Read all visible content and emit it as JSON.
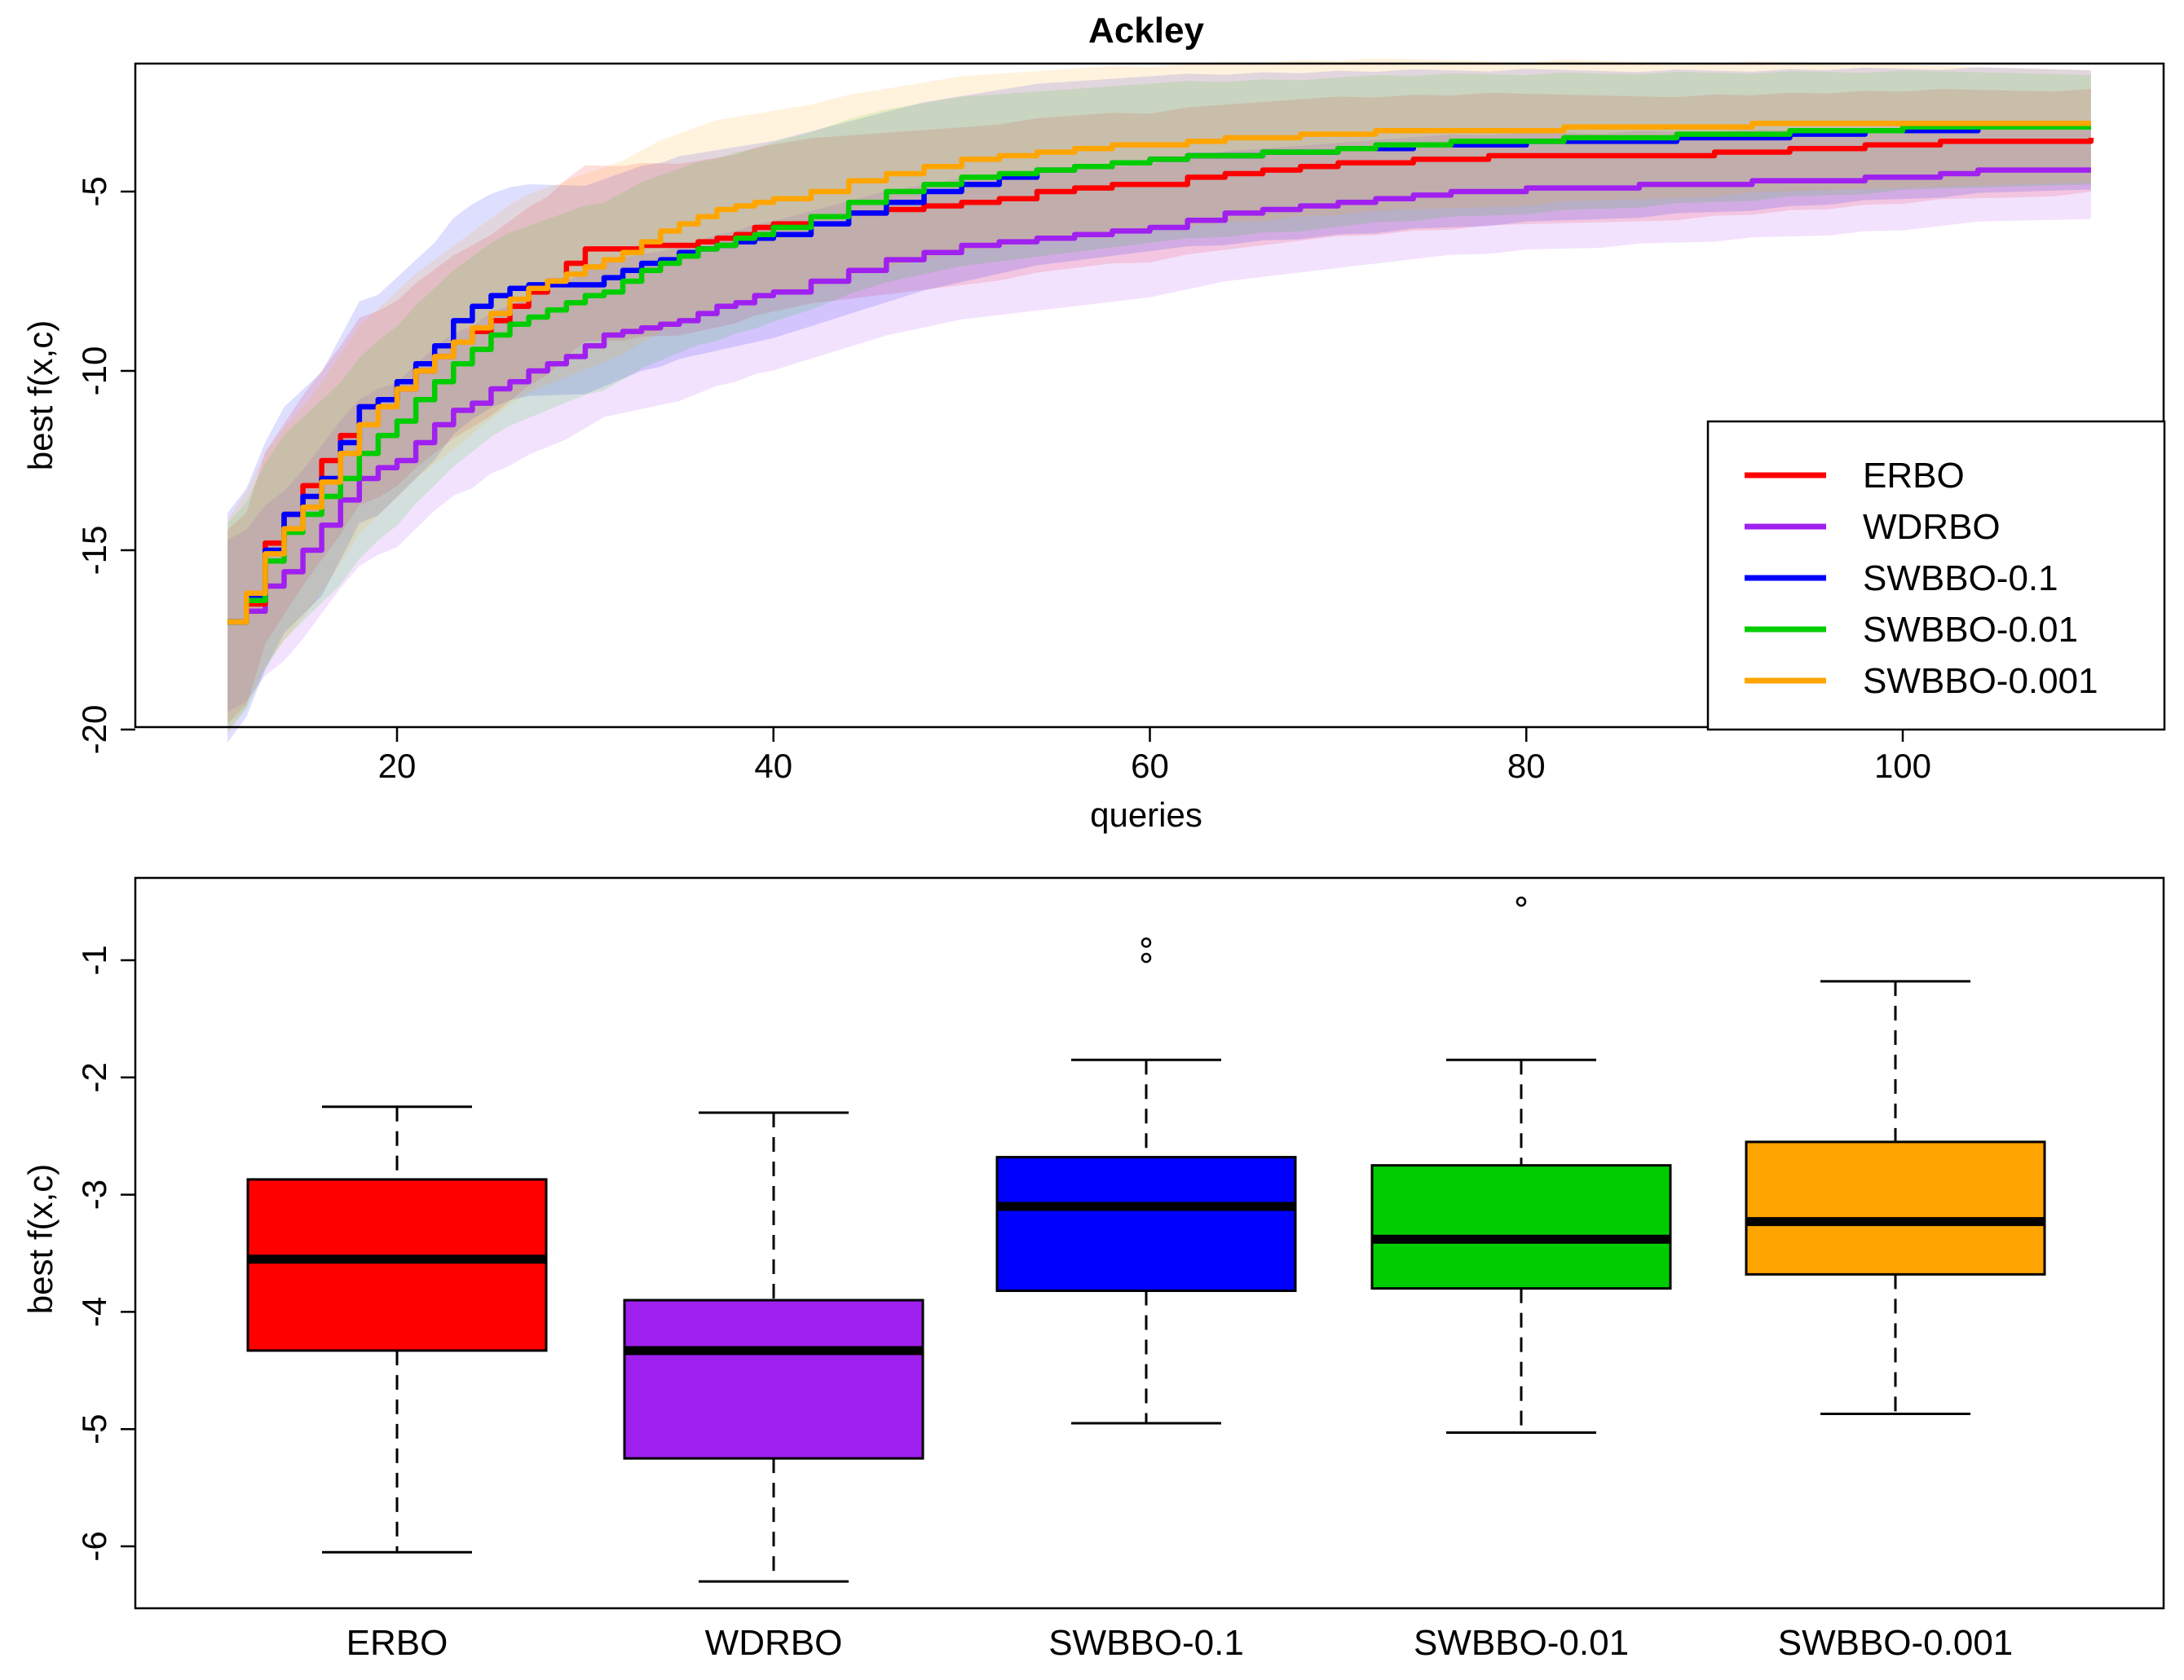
{
  "colors": {
    "ERBO": "#ff0000",
    "WDRBO": "#a020f0",
    "SWBBO-0.1": "#0000ff",
    "SWBBO-0.01": "#00cd00",
    "SWBBO-0.001": "#ffa500"
  },
  "chart_data": [
    {
      "type": "line",
      "title": "Ackley",
      "xlabel": "queries",
      "ylabel": "best f(x,c)",
      "xlim": [
        10,
        110
      ],
      "ylim": [
        -20,
        -2
      ],
      "xticks": [
        20,
        40,
        60,
        80,
        100
      ],
      "yticks": [
        -20,
        -15,
        -10,
        -5
      ],
      "grid": false,
      "legend": "bottom-right",
      "x": [
        11,
        12,
        13,
        14,
        15,
        16,
        17,
        18,
        19,
        20,
        21,
        22,
        23,
        24,
        25,
        26,
        27,
        28,
        29,
        30,
        31,
        32,
        33,
        34,
        35,
        36,
        37,
        38,
        39,
        40,
        42,
        44,
        46,
        48,
        50,
        52,
        54,
        56,
        58,
        60,
        62,
        64,
        66,
        68,
        70,
        72,
        74,
        76,
        78,
        80,
        82,
        84,
        86,
        88,
        90,
        92,
        94,
        96,
        98,
        100,
        102,
        104,
        106,
        108,
        110
      ],
      "series": [
        {
          "name": "ERBO",
          "values": [
            -17.0,
            -16.5,
            -14.8,
            -14.0,
            -13.2,
            -12.5,
            -11.8,
            -11.0,
            -10.8,
            -10.5,
            -10.0,
            -9.6,
            -9.2,
            -8.9,
            -8.6,
            -8.2,
            -7.8,
            -7.5,
            -7.0,
            -6.6,
            -6.6,
            -6.6,
            -6.5,
            -6.5,
            -6.5,
            -6.4,
            -6.3,
            -6.2,
            -6.0,
            -5.9,
            -5.7,
            -5.6,
            -5.5,
            -5.4,
            -5.3,
            -5.2,
            -5.0,
            -4.9,
            -4.8,
            -4.8,
            -4.6,
            -4.5,
            -4.4,
            -4.3,
            -4.2,
            -4.2,
            -4.1,
            -4.1,
            -4.0,
            -4.0,
            -4.0,
            -4.0,
            -4.0,
            -4.0,
            -3.9,
            -3.9,
            -3.8,
            -3.8,
            -3.7,
            -3.7,
            -3.6,
            -3.6,
            -3.6,
            -3.6,
            -3.5
          ]
        },
        {
          "name": "WDRBO",
          "values": [
            -17.0,
            -16.7,
            -16.0,
            -15.6,
            -15.0,
            -14.3,
            -13.6,
            -13.0,
            -12.7,
            -12.5,
            -12.0,
            -11.5,
            -11.1,
            -10.9,
            -10.5,
            -10.3,
            -10.0,
            -9.8,
            -9.6,
            -9.3,
            -9.0,
            -8.9,
            -8.8,
            -8.7,
            -8.6,
            -8.4,
            -8.2,
            -8.1,
            -7.9,
            -7.8,
            -7.5,
            -7.2,
            -6.9,
            -6.7,
            -6.5,
            -6.4,
            -6.3,
            -6.2,
            -6.1,
            -6.0,
            -5.8,
            -5.6,
            -5.5,
            -5.4,
            -5.3,
            -5.2,
            -5.1,
            -5.0,
            -5.0,
            -4.9,
            -4.9,
            -4.9,
            -4.8,
            -4.8,
            -4.8,
            -4.7,
            -4.7,
            -4.7,
            -4.6,
            -4.6,
            -4.5,
            -4.4,
            -4.4,
            -4.4,
            -4.4
          ]
        },
        {
          "name": "SWBBO-0.1",
          "values": [
            -17.0,
            -16.3,
            -15.0,
            -14.0,
            -13.5,
            -13.0,
            -12.0,
            -11.0,
            -10.8,
            -10.3,
            -9.8,
            -9.3,
            -8.6,
            -8.2,
            -7.9,
            -7.7,
            -7.6,
            -7.6,
            -7.6,
            -7.6,
            -7.4,
            -7.2,
            -7.0,
            -6.9,
            -6.7,
            -6.6,
            -6.5,
            -6.4,
            -6.3,
            -6.2,
            -5.9,
            -5.6,
            -5.3,
            -5.0,
            -4.8,
            -4.6,
            -4.4,
            -4.3,
            -4.2,
            -4.1,
            -4.0,
            -4.0,
            -3.9,
            -3.9,
            -3.8,
            -3.8,
            -3.7,
            -3.7,
            -3.7,
            -3.6,
            -3.6,
            -3.6,
            -3.6,
            -3.5,
            -3.5,
            -3.5,
            -3.4,
            -3.4,
            -3.3,
            -3.3,
            -3.3,
            -3.2,
            -3.2,
            -3.2,
            -3.2
          ]
        },
        {
          "name": "SWBBO-0.01",
          "values": [
            -17.0,
            -16.4,
            -15.3,
            -14.5,
            -14.0,
            -13.5,
            -13.0,
            -12.3,
            -11.8,
            -11.4,
            -10.8,
            -10.3,
            -9.8,
            -9.4,
            -9.0,
            -8.7,
            -8.5,
            -8.3,
            -8.1,
            -7.9,
            -7.8,
            -7.5,
            -7.2,
            -7.0,
            -6.8,
            -6.6,
            -6.5,
            -6.3,
            -6.2,
            -6.0,
            -5.7,
            -5.3,
            -5.0,
            -4.8,
            -4.6,
            -4.5,
            -4.4,
            -4.3,
            -4.2,
            -4.1,
            -4.0,
            -4.0,
            -3.9,
            -3.9,
            -3.8,
            -3.7,
            -3.7,
            -3.6,
            -3.6,
            -3.6,
            -3.5,
            -3.5,
            -3.5,
            -3.4,
            -3.4,
            -3.4,
            -3.3,
            -3.3,
            -3.3,
            -3.2,
            -3.2,
            -3.2,
            -3.2,
            -3.2,
            -3.2
          ]
        },
        {
          "name": "SWBBO-0.001",
          "values": [
            -17.0,
            -16.2,
            -15.1,
            -14.4,
            -13.8,
            -13.1,
            -12.3,
            -11.5,
            -11.0,
            -10.5,
            -10.0,
            -9.6,
            -9.2,
            -8.8,
            -8.4,
            -8.0,
            -7.7,
            -7.5,
            -7.3,
            -7.1,
            -6.9,
            -6.7,
            -6.4,
            -6.1,
            -5.9,
            -5.7,
            -5.5,
            -5.4,
            -5.3,
            -5.2,
            -5.0,
            -4.7,
            -4.5,
            -4.3,
            -4.1,
            -4.0,
            -3.9,
            -3.8,
            -3.7,
            -3.7,
            -3.6,
            -3.5,
            -3.5,
            -3.4,
            -3.4,
            -3.3,
            -3.3,
            -3.3,
            -3.3,
            -3.3,
            -3.2,
            -3.2,
            -3.2,
            -3.2,
            -3.2,
            -3.1,
            -3.1,
            -3.1,
            -3.1,
            -3.1,
            -3.1,
            -3.1,
            -3.1,
            -3.1,
            -3.1
          ]
        }
      ]
    },
    {
      "type": "box",
      "title": "",
      "xlabel": "",
      "ylabel": "best f(x,c)",
      "ylim": [
        -6.5,
        -0.3
      ],
      "yticks": [
        -6,
        -5,
        -4,
        -3,
        -2,
        -1
      ],
      "grid": false,
      "categories": [
        "ERBO",
        "WDRBO",
        "SWBBO-0.1",
        "SWBBO-0.01",
        "SWBBO-0.001"
      ],
      "boxes": [
        {
          "name": "ERBO",
          "min": -6.05,
          "q1": -4.33,
          "median": -3.55,
          "q3": -2.87,
          "max": -2.25,
          "outliers": []
        },
        {
          "name": "WDRBO",
          "min": -6.3,
          "q1": -5.25,
          "median": -4.33,
          "q3": -3.9,
          "max": -2.3,
          "outliers": []
        },
        {
          "name": "SWBBO-0.1",
          "min": -4.95,
          "q1": -3.82,
          "median": -3.1,
          "q3": -2.68,
          "max": -1.85,
          "outliers": [
            -0.85,
            -0.98
          ]
        },
        {
          "name": "SWBBO-0.01",
          "min": -5.03,
          "q1": -3.8,
          "median": -3.38,
          "q3": -2.75,
          "max": -1.85,
          "outliers": [
            -0.5
          ]
        },
        {
          "name": "SWBBO-0.001",
          "min": -4.87,
          "q1": -3.68,
          "median": -3.23,
          "q3": -2.55,
          "max": -1.18,
          "outliers": []
        }
      ]
    }
  ]
}
